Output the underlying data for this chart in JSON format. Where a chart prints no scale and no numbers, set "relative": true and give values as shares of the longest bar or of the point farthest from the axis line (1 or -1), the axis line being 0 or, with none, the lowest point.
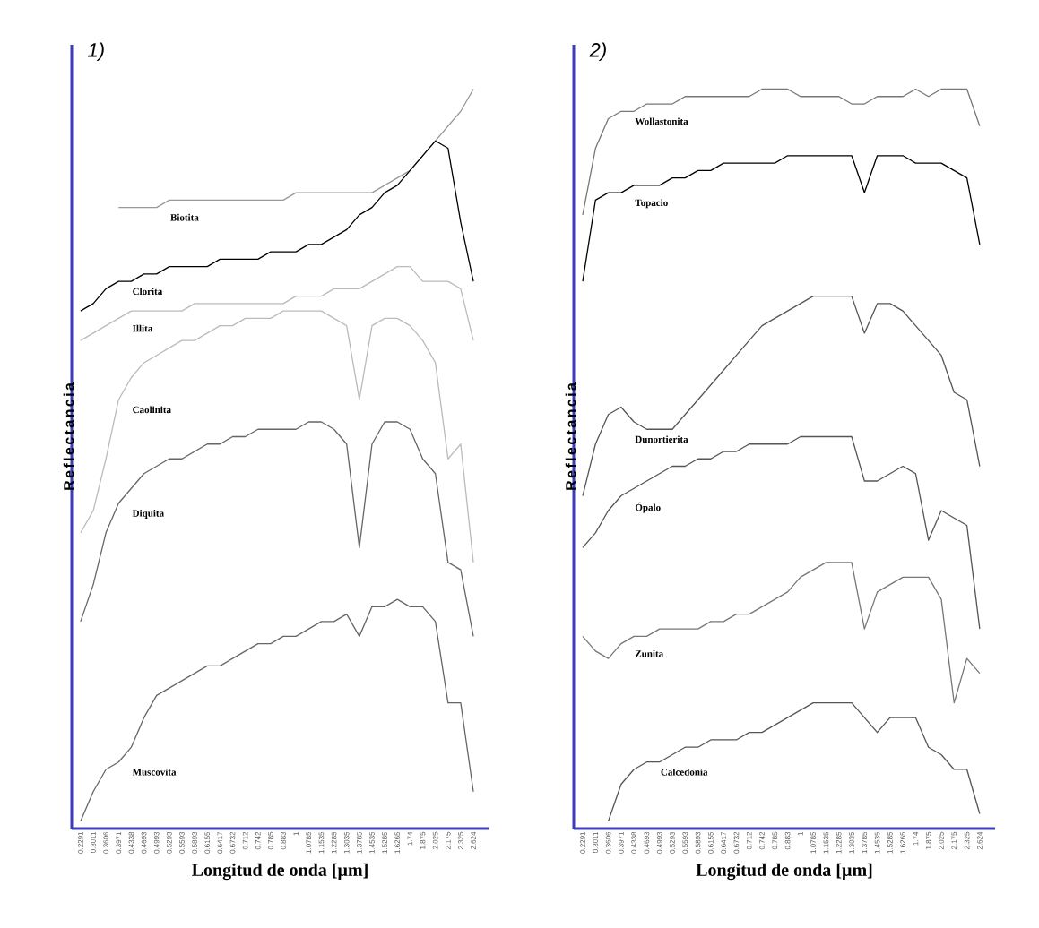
{
  "chart_data": [
    {
      "type": "line",
      "title": "1)",
      "xlabel": "Longitud de onda [µm]",
      "ylabel": "Reflectancia",
      "relative": true,
      "categories": [
        "0.2291",
        "0.3011",
        "0.3606",
        "0.3971",
        "0.4338",
        "0.4693",
        "0.4993",
        "0.5293",
        "0.5593",
        "0.5893",
        "0.6155",
        "0.6417",
        "0.6732",
        "0.712",
        "0.742",
        "0.785",
        "0.883",
        "1",
        "1.0785",
        "1.1535",
        "1.2285",
        "1.3035",
        "1.3785",
        "1.4535",
        "1.5285",
        "1.6265",
        "1.74",
        "1.875",
        "2.025",
        "2.175",
        "2.325",
        "2.624"
      ],
      "series": [
        {
          "name": "Biotita",
          "color": "#999999",
          "values": [
            null,
            null,
            null,
            0.84,
            0.84,
            0.84,
            0.84,
            0.85,
            0.85,
            0.85,
            0.85,
            0.85,
            0.85,
            0.85,
            0.85,
            0.85,
            0.85,
            0.86,
            0.86,
            0.86,
            0.86,
            0.86,
            0.86,
            0.86,
            0.87,
            0.88,
            0.89,
            0.91,
            0.93,
            0.95,
            0.97,
            1.0
          ]
        },
        {
          "name": "Clorita",
          "color": "#000000",
          "values": [
            0.7,
            0.71,
            0.73,
            0.74,
            0.74,
            0.75,
            0.75,
            0.76,
            0.76,
            0.76,
            0.76,
            0.77,
            0.77,
            0.77,
            0.77,
            0.78,
            0.78,
            0.78,
            0.79,
            0.79,
            0.8,
            0.81,
            0.83,
            0.84,
            0.86,
            0.87,
            0.89,
            0.91,
            0.93,
            0.92,
            0.82,
            0.74
          ]
        },
        {
          "name": "Illita",
          "color": "#bbbbbb",
          "values": [
            0.66,
            0.67,
            0.68,
            0.69,
            0.7,
            0.7,
            0.7,
            0.7,
            0.7,
            0.71,
            0.71,
            0.71,
            0.71,
            0.71,
            0.71,
            0.71,
            0.71,
            0.72,
            0.72,
            0.72,
            0.73,
            0.73,
            0.73,
            0.74,
            0.75,
            0.76,
            0.76,
            0.74,
            0.74,
            0.74,
            0.73,
            0.66
          ]
        },
        {
          "name": "Caolinita",
          "color": "#bbbbbb",
          "values": [
            0.4,
            0.43,
            0.5,
            0.58,
            0.61,
            0.63,
            0.64,
            0.65,
            0.66,
            0.66,
            0.67,
            0.68,
            0.68,
            0.69,
            0.69,
            0.69,
            0.7,
            0.7,
            0.7,
            0.7,
            0.69,
            0.68,
            0.58,
            0.68,
            0.69,
            0.69,
            0.68,
            0.66,
            0.63,
            0.5,
            0.52,
            0.36
          ]
        },
        {
          "name": "Diquita",
          "color": "#666666",
          "values": [
            0.28,
            0.33,
            0.4,
            0.44,
            0.46,
            0.48,
            0.49,
            0.5,
            0.5,
            0.51,
            0.52,
            0.52,
            0.53,
            0.53,
            0.54,
            0.54,
            0.54,
            0.54,
            0.55,
            0.55,
            0.54,
            0.52,
            0.38,
            0.52,
            0.55,
            0.55,
            0.54,
            0.5,
            0.48,
            0.36,
            0.35,
            0.26
          ]
        },
        {
          "name": "Muscovita",
          "color": "#666666",
          "values": [
            0.01,
            0.05,
            0.08,
            0.09,
            0.11,
            0.15,
            0.18,
            0.19,
            0.2,
            0.21,
            0.22,
            0.22,
            0.23,
            0.24,
            0.25,
            0.25,
            0.26,
            0.26,
            0.27,
            0.28,
            0.28,
            0.29,
            0.26,
            0.3,
            0.3,
            0.31,
            0.3,
            0.3,
            0.28,
            0.17,
            0.17,
            0.05
          ]
        }
      ]
    },
    {
      "type": "line",
      "title": "2)",
      "xlabel": "Longitud de onda [µm]",
      "ylabel": "Reflectancia",
      "relative": true,
      "categories": [
        "0.2291",
        "0.3011",
        "0.3606",
        "0.3971",
        "0.4338",
        "0.4693",
        "0.4993",
        "0.5293",
        "0.5593",
        "0.5893",
        "0.6155",
        "0.6417",
        "0.6732",
        "0.712",
        "0.742",
        "0.785",
        "0.883",
        "1",
        "1.0785",
        "1.1535",
        "1.2285",
        "1.3035",
        "1.3785",
        "1.4535",
        "1.5285",
        "1.6265",
        "1.74",
        "1.875",
        "2.025",
        "2.175",
        "2.325",
        "2.624"
      ],
      "series": [
        {
          "name": "Wollastonita",
          "color": "#777777",
          "values": [
            0.83,
            0.92,
            0.96,
            0.97,
            0.97,
            0.98,
            0.98,
            0.98,
            0.99,
            0.99,
            0.99,
            0.99,
            0.99,
            0.99,
            1.0,
            1.0,
            1.0,
            0.99,
            0.99,
            0.99,
            0.99,
            0.98,
            0.98,
            0.99,
            0.99,
            0.99,
            1.0,
            0.99,
            1.0,
            1.0,
            1.0,
            0.95
          ]
        },
        {
          "name": "Topacio",
          "color": "#000000",
          "values": [
            0.74,
            0.85,
            0.86,
            0.86,
            0.87,
            0.87,
            0.87,
            0.88,
            0.88,
            0.89,
            0.89,
            0.9,
            0.9,
            0.9,
            0.9,
            0.9,
            0.91,
            0.91,
            0.91,
            0.91,
            0.91,
            0.91,
            0.86,
            0.91,
            0.91,
            0.91,
            0.9,
            0.9,
            0.9,
            0.89,
            0.88,
            0.79
          ]
        },
        {
          "name": "Dunortierita",
          "color": "#555555",
          "values": [
            0.45,
            0.52,
            0.56,
            0.57,
            0.55,
            0.54,
            0.54,
            0.54,
            0.56,
            0.58,
            0.6,
            0.62,
            0.64,
            0.66,
            0.68,
            0.69,
            0.7,
            0.71,
            0.72,
            0.72,
            0.72,
            0.72,
            0.67,
            0.71,
            0.71,
            0.7,
            0.68,
            0.66,
            0.64,
            0.59,
            0.58,
            0.49
          ]
        },
        {
          "name": "Ópalo",
          "color": "#555555",
          "values": [
            0.38,
            0.4,
            0.43,
            0.45,
            0.46,
            0.47,
            0.48,
            0.49,
            0.49,
            0.5,
            0.5,
            0.51,
            0.51,
            0.52,
            0.52,
            0.52,
            0.52,
            0.53,
            0.53,
            0.53,
            0.53,
            0.53,
            0.47,
            0.47,
            0.48,
            0.49,
            0.48,
            0.39,
            0.43,
            0.42,
            0.41,
            0.27
          ]
        },
        {
          "name": "Zunita",
          "color": "#777777",
          "values": [
            0.26,
            0.24,
            0.23,
            0.25,
            0.26,
            0.26,
            0.27,
            0.27,
            0.27,
            0.27,
            0.28,
            0.28,
            0.29,
            0.29,
            0.3,
            0.31,
            0.32,
            0.34,
            0.35,
            0.36,
            0.36,
            0.36,
            0.27,
            0.32,
            0.33,
            0.34,
            0.34,
            0.34,
            0.31,
            0.17,
            0.23,
            0.21
          ]
        },
        {
          "name": "Calcedonia",
          "color": "#555555",
          "values": [
            null,
            null,
            0.01,
            0.06,
            0.08,
            0.09,
            0.09,
            0.1,
            0.11,
            0.11,
            0.12,
            0.12,
            0.12,
            0.13,
            0.13,
            0.14,
            0.15,
            0.16,
            0.17,
            0.17,
            0.17,
            0.17,
            0.15,
            0.13,
            0.15,
            0.15,
            0.15,
            0.11,
            0.1,
            0.08,
            0.08,
            0.02
          ]
        }
      ]
    }
  ]
}
